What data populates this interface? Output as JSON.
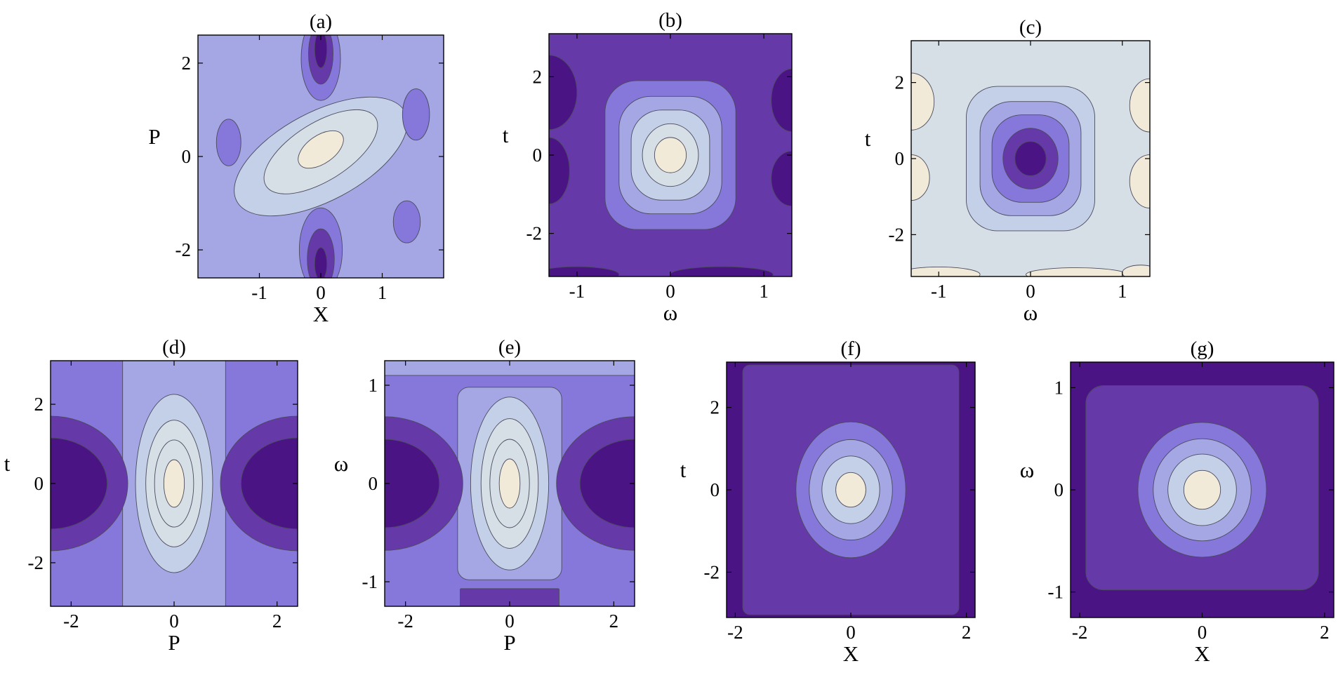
{
  "palette": [
    "#4a1485",
    "#6539a8",
    "#8678da",
    "#a4a7e4",
    "#c4d0e8",
    "#d6dfe6",
    "#f2ead9"
  ],
  "chart_data": [
    {
      "panel_label": "(a)",
      "type": "heatmap",
      "subtype": "filled-contour",
      "xlabel": "X",
      "ylabel": "P",
      "xlim": [
        -2,
        2
      ],
      "ylim": [
        -2.6,
        2.6
      ],
      "xticks": [
        {
          "v": -1,
          "t": "-1"
        },
        {
          "v": 0,
          "t": "0"
        },
        {
          "v": 1,
          "t": "1"
        }
      ],
      "yticks": [
        {
          "v": -2,
          "t": "-2"
        },
        {
          "v": 0,
          "t": "0"
        },
        {
          "v": 2,
          "t": "2"
        }
      ],
      "background_level": 3,
      "features": [
        {
          "x": 0,
          "y": 0.0,
          "rx": 1.55,
          "ry": 0.95,
          "rot": -28,
          "level": 4
        },
        {
          "x": 0,
          "y": 0.1,
          "rx": 1.05,
          "ry": 0.62,
          "rot": -32,
          "level": 5
        },
        {
          "x": 0,
          "y": 0.15,
          "rx": 0.42,
          "ry": 0.3,
          "rot": -35,
          "level": 6
        },
        {
          "x": 0,
          "y": 2.1,
          "rx": 0.32,
          "ry": 0.9,
          "rot": 0,
          "level": 2
        },
        {
          "x": 0,
          "y": 2.2,
          "rx": 0.2,
          "ry": 0.65,
          "rot": 0,
          "level": 1
        },
        {
          "x": 0,
          "y": 2.3,
          "rx": 0.1,
          "ry": 0.4,
          "rot": 0,
          "level": 0
        },
        {
          "x": 0,
          "y": -2.0,
          "rx": 0.35,
          "ry": 0.9,
          "rot": 0,
          "level": 2
        },
        {
          "x": 0,
          "y": -2.2,
          "rx": 0.22,
          "ry": 0.65,
          "rot": 0,
          "level": 1
        },
        {
          "x": 0,
          "y": -2.3,
          "rx": 0.1,
          "ry": 0.35,
          "rot": 0,
          "level": 0
        },
        {
          "x": 1.55,
          "y": 0.9,
          "rx": 0.22,
          "ry": 0.55,
          "rot": 0,
          "level": 2
        },
        {
          "x": -1.5,
          "y": 0.3,
          "rx": 0.2,
          "ry": 0.5,
          "rot": 0,
          "level": 2
        },
        {
          "x": 1.4,
          "y": -1.4,
          "rx": 0.22,
          "ry": 0.45,
          "rot": 0,
          "level": 2
        }
      ]
    },
    {
      "panel_label": "(b)",
      "type": "heatmap",
      "subtype": "filled-contour",
      "xlabel": "ω",
      "ylabel": "t",
      "xlim": [
        -1.3,
        1.3
      ],
      "ylim": [
        -3.1,
        3.1
      ],
      "xticks": [
        {
          "v": -1,
          "t": "-1"
        },
        {
          "v": 0,
          "t": "0"
        },
        {
          "v": 1,
          "t": "1"
        }
      ],
      "yticks": [
        {
          "v": -2,
          "t": "-2"
        },
        {
          "v": 0,
          "t": "0"
        },
        {
          "v": 2,
          "t": "2"
        }
      ],
      "background_level": 1,
      "features": [
        {
          "x": -1.3,
          "y": 1.6,
          "rx": 0.3,
          "ry": 0.95,
          "rot": 0,
          "level": 0
        },
        {
          "x": -1.3,
          "y": -0.4,
          "rx": 0.22,
          "ry": 0.85,
          "rot": 0,
          "level": 0
        },
        {
          "x": 1.3,
          "y": 1.4,
          "rx": 0.22,
          "ry": 0.8,
          "rot": 0,
          "level": 0
        },
        {
          "x": 1.3,
          "y": -0.6,
          "rx": 0.22,
          "ry": 0.7,
          "rot": 0,
          "level": 0
        },
        {
          "x": -1.0,
          "y": -3.05,
          "rx": 0.45,
          "ry": 0.2,
          "rot": 0,
          "level": 0
        },
        {
          "x": 0.55,
          "y": -3.05,
          "rx": 0.55,
          "ry": 0.2,
          "rot": 0,
          "level": 0
        },
        {
          "x": 0,
          "y": 0,
          "rx": 0.7,
          "ry": 1.9,
          "rot": 0,
          "corner": 0.22,
          "level": 2
        },
        {
          "x": 0,
          "y": 0,
          "rx": 0.55,
          "ry": 1.5,
          "rot": 0,
          "corner": 0.28,
          "level": 3
        },
        {
          "x": 0,
          "y": 0,
          "rx": 0.42,
          "ry": 1.15,
          "rot": 0,
          "corner": 0.35,
          "level": 4
        },
        {
          "x": 0,
          "y": 0,
          "rx": 0.3,
          "ry": 0.8,
          "rot": 0,
          "level": 5
        },
        {
          "x": 0,
          "y": 0,
          "rx": 0.17,
          "ry": 0.45,
          "rot": 0,
          "level": 6
        }
      ]
    },
    {
      "panel_label": "(c)",
      "type": "heatmap",
      "subtype": "filled-contour",
      "xlabel": "ω",
      "ylabel": "t",
      "xlim": [
        -1.3,
        1.3
      ],
      "ylim": [
        -3.1,
        3.1
      ],
      "xticks": [
        {
          "v": -1,
          "t": "-1"
        },
        {
          "v": 0,
          "t": "0"
        },
        {
          "v": 1,
          "t": "1"
        }
      ],
      "yticks": [
        {
          "v": -2,
          "t": "-2"
        },
        {
          "v": 0,
          "t": "0"
        },
        {
          "v": 2,
          "t": "2"
        }
      ],
      "background_level": 5,
      "features": [
        {
          "x": -1.3,
          "y": 1.5,
          "rx": 0.25,
          "ry": 0.75,
          "rot": 0,
          "level": 6
        },
        {
          "x": -1.3,
          "y": -0.5,
          "rx": 0.2,
          "ry": 0.6,
          "rot": 0,
          "level": 6
        },
        {
          "x": 1.3,
          "y": 1.4,
          "rx": 0.22,
          "ry": 0.7,
          "rot": 0,
          "level": 6
        },
        {
          "x": 1.3,
          "y": -0.6,
          "rx": 0.22,
          "ry": 0.7,
          "rot": 0,
          "level": 6
        },
        {
          "x": -1.0,
          "y": -3.05,
          "rx": 0.45,
          "ry": 0.2,
          "rot": 0,
          "level": 6
        },
        {
          "x": 0.5,
          "y": -3.05,
          "rx": 0.55,
          "ry": 0.18,
          "rot": 0,
          "level": 6
        },
        {
          "x": 1.2,
          "y": -3.0,
          "rx": 0.2,
          "ry": 0.2,
          "rot": 0,
          "level": 6
        },
        {
          "x": 0,
          "y": 0,
          "rx": 0.7,
          "ry": 1.9,
          "rot": 0,
          "corner": 0.22,
          "level": 4
        },
        {
          "x": 0,
          "y": 0,
          "rx": 0.55,
          "ry": 1.5,
          "rot": 0,
          "corner": 0.28,
          "level": 3
        },
        {
          "x": 0,
          "y": 0,
          "rx": 0.42,
          "ry": 1.15,
          "rot": 0,
          "corner": 0.35,
          "level": 2
        },
        {
          "x": 0,
          "y": 0,
          "rx": 0.3,
          "ry": 0.8,
          "rot": 0,
          "level": 1
        },
        {
          "x": 0,
          "y": 0,
          "rx": 0.17,
          "ry": 0.45,
          "rot": 0,
          "level": 0
        }
      ]
    },
    {
      "panel_label": "(d)",
      "type": "heatmap",
      "subtype": "filled-contour",
      "xlabel": "P",
      "ylabel": "t",
      "xlim": [
        -2.4,
        2.4
      ],
      "ylim": [
        -3.1,
        3.1
      ],
      "xticks": [
        {
          "v": -2,
          "t": "-2"
        },
        {
          "v": 0,
          "t": "0"
        },
        {
          "v": 2,
          "t": "2"
        }
      ],
      "yticks": [
        {
          "v": -2,
          "t": "-2"
        },
        {
          "v": 0,
          "t": "0"
        },
        {
          "v": 2,
          "t": "2"
        }
      ],
      "background_level": 2,
      "features": [
        {
          "x": 0,
          "y": 0,
          "rx": 1.0,
          "ry": 3.1,
          "rot": 0,
          "corner": 0.0,
          "level": 3
        },
        {
          "x": -2.4,
          "y": 0,
          "rx": 1.5,
          "ry": 1.7,
          "rot": 0,
          "level": 1
        },
        {
          "x": -2.4,
          "y": 0,
          "rx": 1.1,
          "ry": 1.15,
          "rot": 0,
          "level": 0
        },
        {
          "x": 2.4,
          "y": 0,
          "rx": 1.5,
          "ry": 1.7,
          "rot": 0,
          "level": 1
        },
        {
          "x": 2.4,
          "y": 0,
          "rx": 1.1,
          "ry": 1.15,
          "rot": 0,
          "level": 0
        },
        {
          "x": 0,
          "y": 0,
          "rx": 0.75,
          "ry": 2.25,
          "rot": 0,
          "level": 4
        },
        {
          "x": 0,
          "y": 0,
          "rx": 0.55,
          "ry": 1.6,
          "rot": 0,
          "level": 5
        },
        {
          "x": 0,
          "y": 0,
          "rx": 0.38,
          "ry": 1.1,
          "rot": 0,
          "level": 5
        },
        {
          "x": 0,
          "y": 0,
          "rx": 0.2,
          "ry": 0.6,
          "rot": 0,
          "level": 6
        }
      ]
    },
    {
      "panel_label": "(e)",
      "type": "heatmap",
      "subtype": "filled-contour",
      "xlabel": "P",
      "ylabel": "ω",
      "xlim": [
        -2.4,
        2.4
      ],
      "ylim": [
        -1.25,
        1.25
      ],
      "xticks": [
        {
          "v": -2,
          "t": "-2"
        },
        {
          "v": 0,
          "t": "0"
        },
        {
          "v": 2,
          "t": "2"
        }
      ],
      "yticks": [
        {
          "v": -1,
          "t": "-1"
        },
        {
          "v": 0,
          "t": "0"
        },
        {
          "v": 1,
          "t": "1"
        }
      ],
      "background_level": 2,
      "features": [
        {
          "x": 0,
          "y": 1.22,
          "rx": 2.4,
          "ry": 0.12,
          "rot": 0,
          "corner": 0.0,
          "level": 3
        },
        {
          "x": 0,
          "y": 0,
          "rx": 1.0,
          "ry": 0.98,
          "rot": 0,
          "corner": 0.1,
          "level": 3
        },
        {
          "x": 0,
          "y": -1.17,
          "rx": 0.95,
          "ry": 0.1,
          "rot": 0,
          "corner": 0.05,
          "level": 1
        },
        {
          "x": -2.4,
          "y": 0,
          "rx": 1.5,
          "ry": 0.68,
          "rot": 0,
          "level": 1
        },
        {
          "x": -2.4,
          "y": 0,
          "rx": 1.05,
          "ry": 0.45,
          "rot": 0,
          "level": 0
        },
        {
          "x": 2.4,
          "y": 0,
          "rx": 1.5,
          "ry": 0.68,
          "rot": 0,
          "level": 1
        },
        {
          "x": 2.4,
          "y": 0,
          "rx": 1.05,
          "ry": 0.45,
          "rot": 0,
          "level": 0
        },
        {
          "x": 0,
          "y": 0,
          "rx": 0.75,
          "ry": 0.88,
          "rot": 0,
          "level": 4
        },
        {
          "x": 0,
          "y": 0,
          "rx": 0.55,
          "ry": 0.66,
          "rot": 0,
          "level": 5
        },
        {
          "x": 0,
          "y": 0,
          "rx": 0.38,
          "ry": 0.45,
          "rot": 0,
          "level": 5
        },
        {
          "x": 0,
          "y": 0,
          "rx": 0.2,
          "ry": 0.25,
          "rot": 0,
          "level": 6
        }
      ]
    },
    {
      "panel_label": "(f)",
      "type": "heatmap",
      "subtype": "filled-contour",
      "xlabel": "X",
      "ylabel": "t",
      "xlim": [
        -2.15,
        2.15
      ],
      "ylim": [
        -3.1,
        3.1
      ],
      "xticks": [
        {
          "v": -2,
          "t": "-2"
        },
        {
          "v": 0,
          "t": "0"
        },
        {
          "v": 2,
          "t": "2"
        }
      ],
      "yticks": [
        {
          "v": -2,
          "t": "-2"
        },
        {
          "v": 0,
          "t": "0"
        },
        {
          "v": 2,
          "t": "2"
        }
      ],
      "background_level": 0,
      "features": [
        {
          "x": 0,
          "y": 0,
          "rx": 1.87,
          "ry": 3.03,
          "rot": 0,
          "corner": 0.03,
          "level": 1
        },
        {
          "x": 0,
          "y": 0,
          "rx": 0.95,
          "ry": 1.65,
          "rot": 0,
          "level": 2
        },
        {
          "x": 0,
          "y": 0,
          "rx": 0.72,
          "ry": 1.22,
          "rot": 0,
          "level": 3
        },
        {
          "x": 0,
          "y": 0,
          "rx": 0.5,
          "ry": 0.82,
          "rot": 0,
          "level": 4
        },
        {
          "x": 0,
          "y": 0,
          "rx": 0.26,
          "ry": 0.42,
          "rot": 0,
          "level": 6
        }
      ]
    },
    {
      "panel_label": "(g)",
      "type": "heatmap",
      "subtype": "filled-contour",
      "xlabel": "X",
      "ylabel": "ω",
      "xlim": [
        -2.15,
        2.15
      ],
      "ylim": [
        -1.25,
        1.25
      ],
      "xticks": [
        {
          "v": -2,
          "t": "-2"
        },
        {
          "v": 0,
          "t": "0"
        },
        {
          "v": 2,
          "t": "2"
        }
      ],
      "yticks": [
        {
          "v": -1,
          "t": "-1"
        },
        {
          "v": 0,
          "t": "0"
        },
        {
          "v": 1,
          "t": "1"
        }
      ],
      "background_level": 0,
      "features": [
        {
          "x": 0,
          "y": 0.02,
          "rx": 1.9,
          "ry": 1.0,
          "rot": 0,
          "corner": 0.08,
          "level": 1
        },
        {
          "x": 0,
          "y": 0,
          "rx": 1.05,
          "ry": 0.66,
          "rot": 0,
          "level": 2
        },
        {
          "x": 0,
          "y": 0,
          "rx": 0.8,
          "ry": 0.5,
          "rot": 0,
          "level": 3
        },
        {
          "x": 0,
          "y": 0,
          "rx": 0.56,
          "ry": 0.35,
          "rot": 0,
          "level": 4
        },
        {
          "x": 0,
          "y": 0,
          "rx": 0.3,
          "ry": 0.19,
          "rot": 0,
          "level": 6
        }
      ]
    }
  ]
}
